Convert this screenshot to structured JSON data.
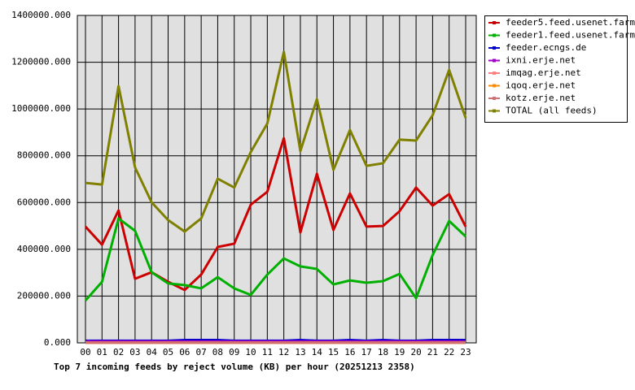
{
  "chart_data": {
    "type": "line",
    "title": "Top 7 incoming feeds by reject volume (KB) per hour (20251213 2358)",
    "categories": [
      "00",
      "01",
      "02",
      "03",
      "04",
      "05",
      "06",
      "07",
      "08",
      "09",
      "10",
      "11",
      "12",
      "13",
      "14",
      "15",
      "16",
      "17",
      "18",
      "19",
      "20",
      "21",
      "22",
      "23"
    ],
    "ylim": [
      0,
      1400000
    ],
    "yticks": [
      {
        "value": 0,
        "label": "0.000"
      },
      {
        "value": 200000,
        "label": "200000.000"
      },
      {
        "value": 400000,
        "label": "400000.000"
      },
      {
        "value": 600000,
        "label": "600000.000"
      },
      {
        "value": 800000,
        "label": "800000.000"
      },
      {
        "value": 1000000,
        "label": "1000000.000"
      },
      {
        "value": 1200000,
        "label": "1200000.000"
      },
      {
        "value": 1400000,
        "label": "1400000.000"
      }
    ],
    "grid": true,
    "legend": "right",
    "series": [
      {
        "name": "feeder5.feed.usenet.farm",
        "color": "#cc0000",
        "values": [
          497000,
          420000,
          566000,
          274000,
          302000,
          261000,
          226000,
          292000,
          410000,
          424000,
          591000,
          646000,
          875000,
          472000,
          723000,
          483000,
          639000,
          497000,
          500000,
          563000,
          664000,
          587000,
          636000,
          497000
        ]
      },
      {
        "name": "feeder1.feed.usenet.farm",
        "color": "#00b000",
        "values": [
          181000,
          261000,
          532000,
          479000,
          302000,
          254000,
          247000,
          233000,
          281000,
          233000,
          205000,
          292000,
          361000,
          327000,
          316000,
          250000,
          267000,
          257000,
          264000,
          295000,
          191000,
          375000,
          521000,
          455000
        ]
      },
      {
        "name": "feeder.ecngs.de",
        "color": "#0000cc",
        "values": [
          9000,
          9000,
          9000,
          9000,
          9000,
          9000,
          12000,
          12000,
          12000,
          9000,
          9000,
          9000,
          9000,
          12000,
          9000,
          9000,
          12000,
          9000,
          12000,
          9000,
          9000,
          12000,
          12000,
          12000
        ]
      },
      {
        "name": "ixni.erje.net",
        "color": "#a000c8",
        "values": [
          6000,
          6000,
          6000,
          6000,
          6000,
          6000,
          6000,
          6000,
          6000,
          6000,
          6000,
          6000,
          6000,
          6000,
          6000,
          6000,
          6000,
          6000,
          6000,
          6000,
          6000,
          6000,
          6000,
          6000
        ]
      },
      {
        "name": "imqag.erje.net",
        "color": "#ff8080",
        "values": [
          1000,
          1000,
          1000,
          1000,
          1000,
          1000,
          1000,
          1000,
          1000,
          1000,
          1000,
          1000,
          1000,
          1000,
          1000,
          1000,
          1000,
          1000,
          1000,
          1000,
          1000,
          1000,
          1000,
          1000
        ]
      },
      {
        "name": "iqoq.erje.net",
        "color": "#ff8c00",
        "values": [
          1000,
          1000,
          1000,
          1000,
          1000,
          1000,
          1000,
          1000,
          1000,
          1000,
          1000,
          1000,
          1000,
          1000,
          1000,
          1000,
          1000,
          1000,
          1000,
          1000,
          1000,
          1000,
          1000,
          1000
        ]
      },
      {
        "name": "kotz.erje.net",
        "color": "#d07070",
        "values": [
          1000,
          1000,
          1000,
          1000,
          1000,
          1000,
          1000,
          1000,
          1000,
          1000,
          1000,
          1000,
          1000,
          1000,
          1000,
          1000,
          1000,
          1000,
          1000,
          1000,
          1000,
          1000,
          1000,
          1000
        ]
      },
      {
        "name": "TOTAL (all feeds)",
        "color": "#808000",
        "values": [
          684000,
          677000,
          1098000,
          750000,
          601000,
          525000,
          476000,
          532000,
          702000,
          664000,
          816000,
          938000,
          1244000,
          820000,
          1042000,
          740000,
          910000,
          757000,
          768000,
          869000,
          865000,
          973000,
          1167000,
          962000
        ]
      }
    ]
  }
}
